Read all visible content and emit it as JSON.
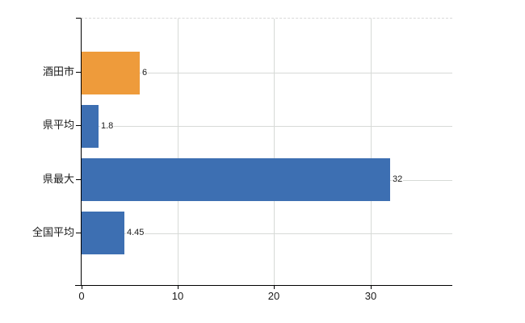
{
  "chart_data": {
    "type": "bar",
    "orientation": "horizontal",
    "title": "",
    "xlabel": "",
    "ylabel": "",
    "categories": [
      "酒田市",
      "県平均",
      "県最大",
      "全国平均"
    ],
    "values": [
      6,
      1.8,
      32,
      4.45
    ],
    "value_labels": [
      "6",
      "1.8",
      "32",
      "4.45"
    ],
    "bar_colors": [
      "#ee9b3b",
      "#3d6fb2",
      "#3d6fb2",
      "#3d6fb2"
    ],
    "highlight_category": "酒田市",
    "xlim": [
      0,
      38.5
    ],
    "xticks": [
      0,
      10,
      20,
      30
    ],
    "xtick_labels": [
      "0",
      "10",
      "20",
      "30"
    ],
    "grid": "on",
    "legend": "none",
    "colors": {
      "highlight_bar": "#ee9b3b",
      "default_bar": "#3d6fb2",
      "gridline": "#d7dad7",
      "top_border_dashed": "#d9d9d9",
      "axis_line": "#000000",
      "text": "#1a1a1a",
      "background": "#ffffff"
    }
  }
}
